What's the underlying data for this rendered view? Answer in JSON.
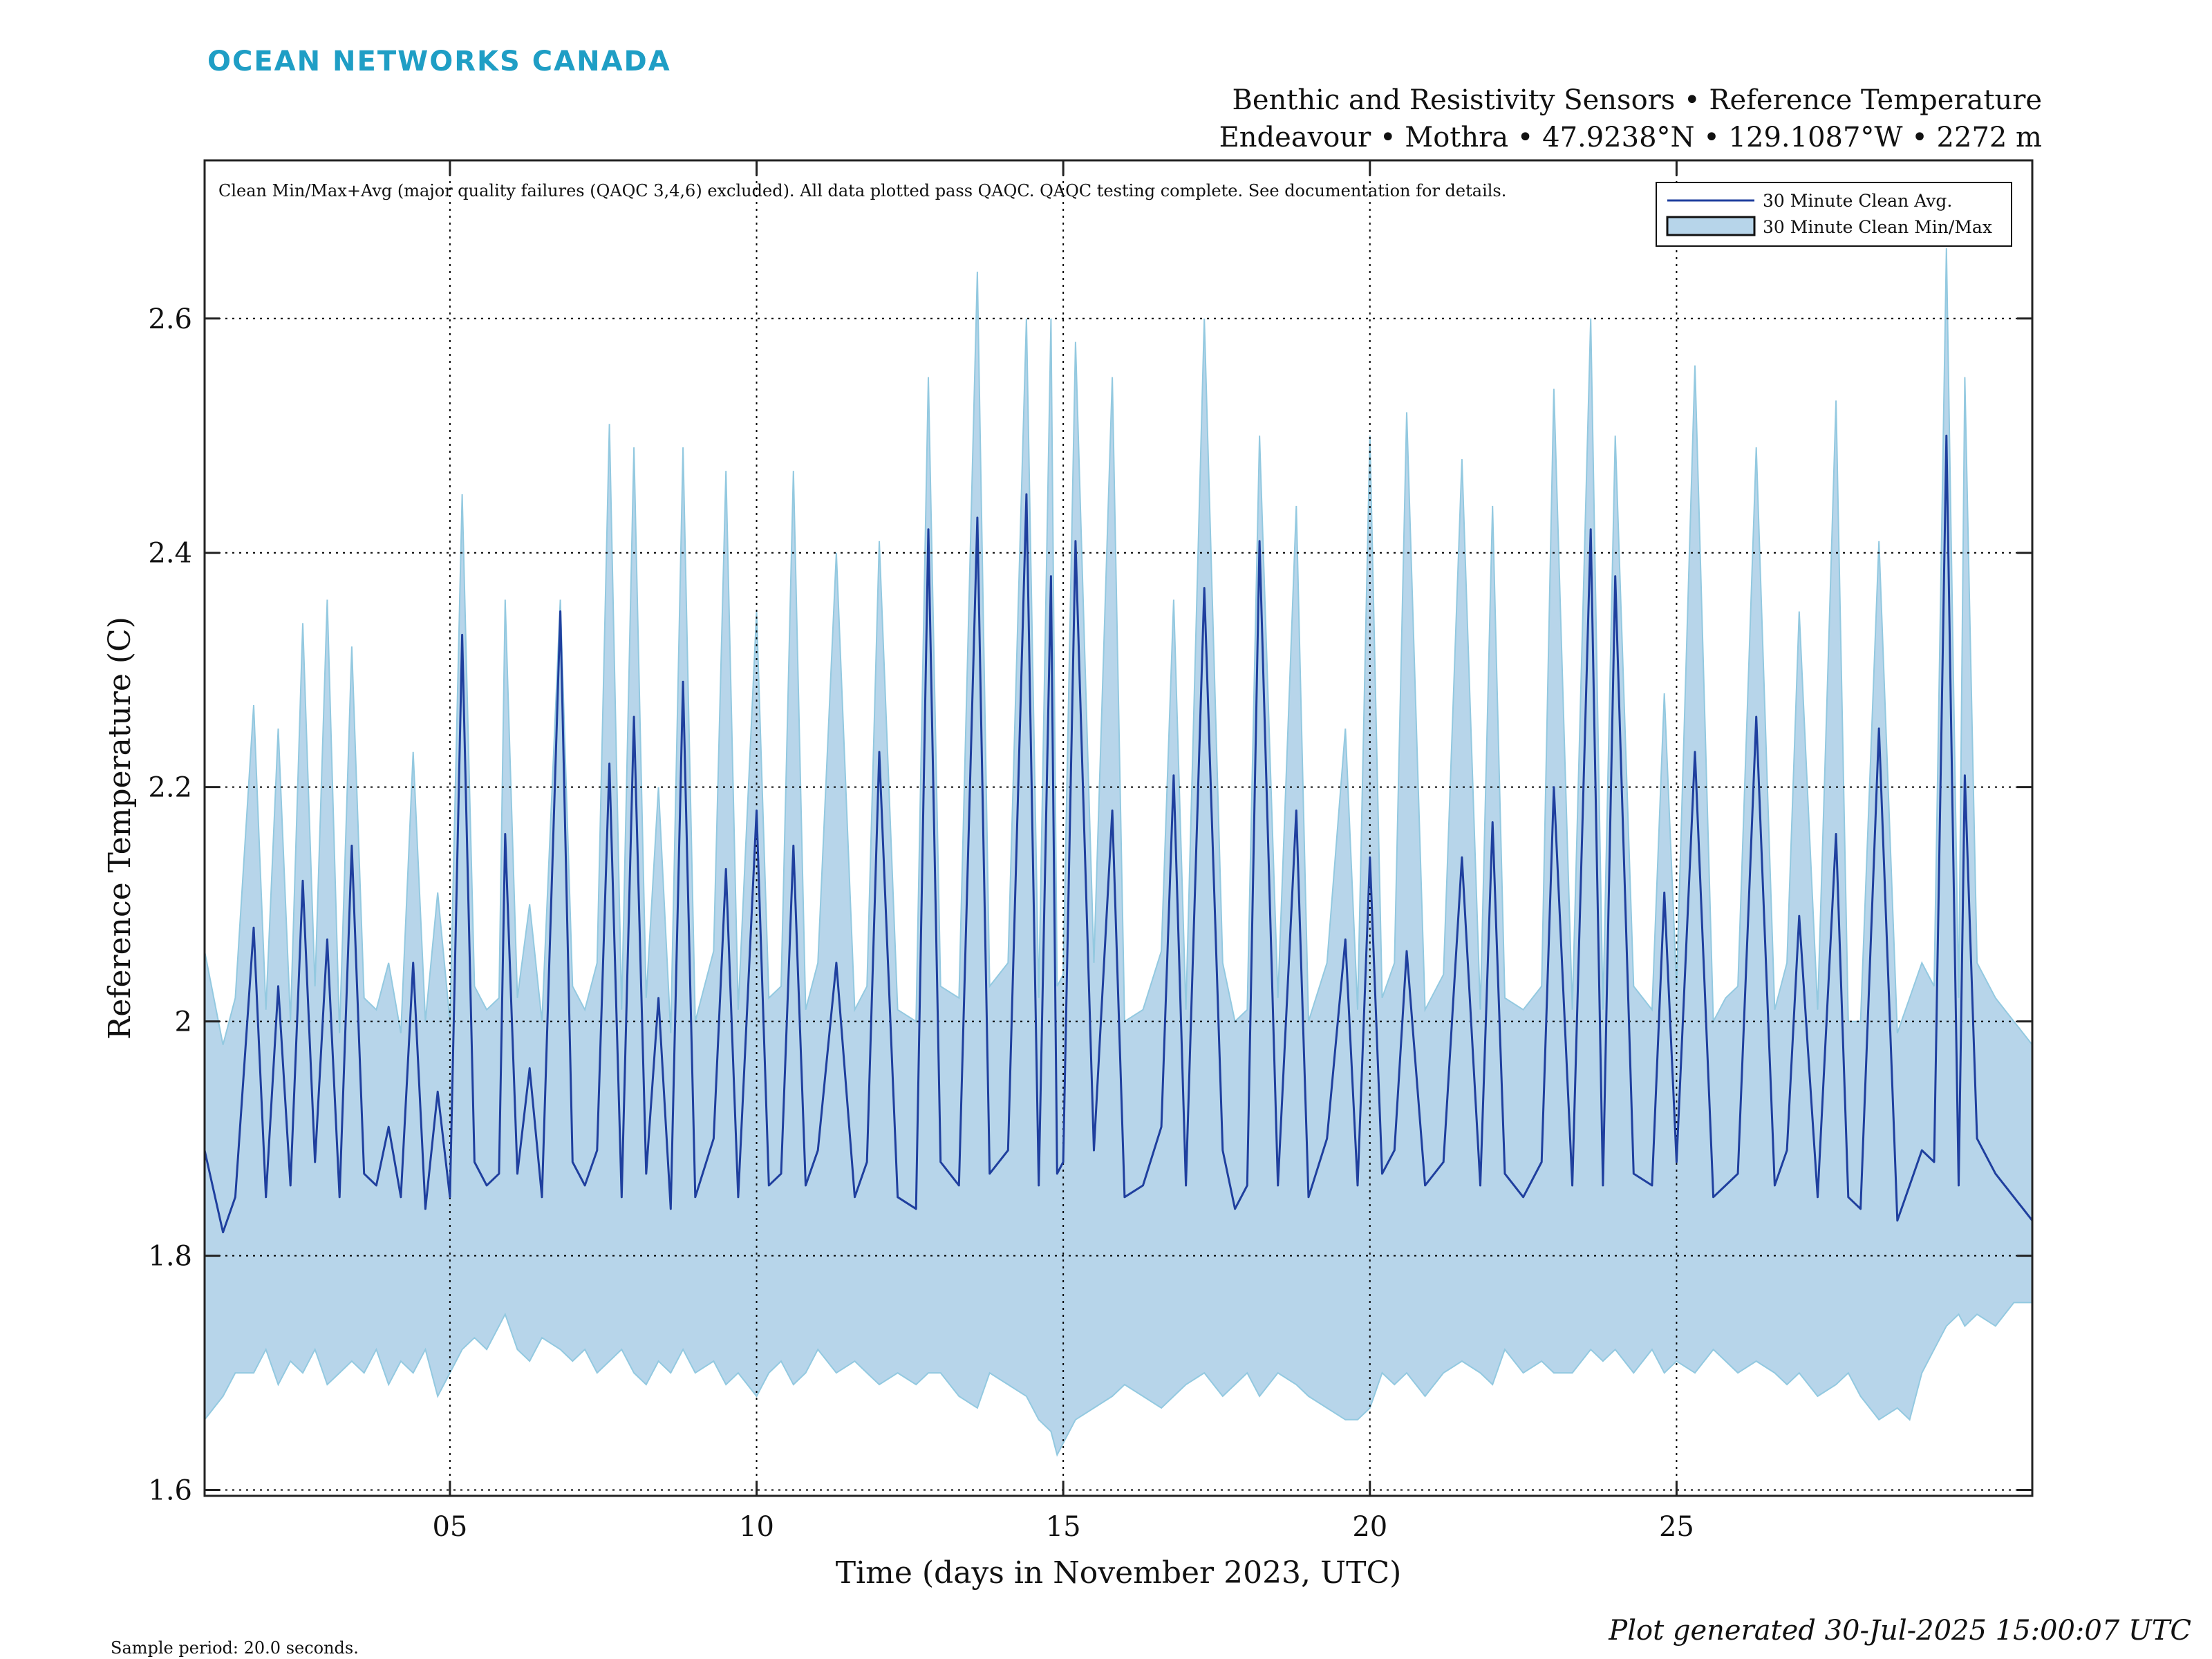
{
  "header": {
    "brand": "OCEAN NETWORKS CANADA",
    "title_line1": "Benthic and Resistivity Sensors • Reference Temperature",
    "title_line2": "Endeavour • Mothra • 47.9238°N • 129.1087°W • 2272 m"
  },
  "footer": {
    "sample_period": "Sample period: 20.0 seconds.",
    "generated": "Plot generated 30-Jul-2025 15:00:07 UTC"
  },
  "colors": {
    "avg_line": "#1f3f9e",
    "minmax_fill": "#b7d5ea",
    "minmax_spike": "#93c9e0",
    "grid": "#000000"
  },
  "chart_data": {
    "type": "area",
    "xlabel": "Time (days in November 2023, UTC)",
    "ylabel": "Reference Temperature (C)",
    "xlim": [
      1.0,
      30.8
    ],
    "ylim": [
      1.595,
      2.735
    ],
    "x_ticks": [
      5,
      10,
      15,
      20,
      25
    ],
    "x_tick_labels": [
      "05",
      "10",
      "15",
      "20",
      "25"
    ],
    "y_ticks": [
      1.6,
      1.8,
      2.0,
      2.2,
      2.4,
      2.6
    ],
    "y_tick_labels": [
      "1.6",
      "1.8",
      "2",
      "2.2",
      "2.4",
      "2.6"
    ],
    "grid": true,
    "legend_position": "top-right",
    "annotation": "Clean Min/Max+Avg (major quality failures (QAQC 3,4,6) excluded).  All data plotted pass QAQC. QAQC testing complete. See documentation for details.",
    "series": [
      {
        "name": "30 Minute Clean Avg.",
        "kind": "line",
        "x": [
          1.0,
          1.3,
          1.5,
          1.8,
          2.0,
          2.2,
          2.4,
          2.6,
          2.8,
          3.0,
          3.2,
          3.4,
          3.6,
          3.8,
          4.0,
          4.2,
          4.4,
          4.6,
          4.8,
          5.0,
          5.2,
          5.4,
          5.6,
          5.8,
          5.9,
          6.1,
          6.3,
          6.5,
          6.8,
          7.0,
          7.2,
          7.4,
          7.6,
          7.8,
          8.0,
          8.2,
          8.4,
          8.6,
          8.8,
          9.0,
          9.3,
          9.5,
          9.7,
          10.0,
          10.2,
          10.4,
          10.6,
          10.8,
          11.0,
          11.3,
          11.6,
          11.8,
          12.0,
          12.3,
          12.6,
          12.8,
          13.0,
          13.3,
          13.6,
          13.8,
          14.1,
          14.4,
          14.6,
          14.8,
          14.9,
          15.0,
          15.2,
          15.5,
          15.8,
          16.0,
          16.3,
          16.6,
          16.8,
          17.0,
          17.3,
          17.6,
          17.8,
          18.0,
          18.2,
          18.5,
          18.8,
          19.0,
          19.3,
          19.6,
          19.8,
          20.0,
          20.2,
          20.4,
          20.6,
          20.9,
          21.2,
          21.5,
          21.8,
          22.0,
          22.2,
          22.5,
          22.8,
          23.0,
          23.3,
          23.6,
          23.8,
          24.0,
          24.3,
          24.6,
          24.8,
          25.0,
          25.3,
          25.6,
          25.8,
          26.0,
          26.3,
          26.6,
          26.8,
          27.0,
          27.3,
          27.6,
          27.8,
          28.0,
          28.3,
          28.6,
          28.8,
          29.0,
          29.2,
          29.4,
          29.6,
          29.7,
          29.9,
          30.2,
          30.5,
          30.8
        ],
        "values": [
          1.89,
          1.82,
          1.85,
          2.08,
          1.85,
          2.03,
          1.86,
          2.12,
          1.88,
          2.07,
          1.85,
          2.15,
          1.87,
          1.86,
          1.91,
          1.85,
          2.05,
          1.84,
          1.94,
          1.85,
          2.33,
          1.88,
          1.86,
          1.87,
          2.16,
          1.87,
          1.96,
          1.85,
          2.35,
          1.88,
          1.86,
          1.89,
          2.22,
          1.85,
          2.26,
          1.87,
          2.02,
          1.84,
          2.29,
          1.85,
          1.9,
          2.13,
          1.85,
          2.18,
          1.86,
          1.87,
          2.15,
          1.86,
          1.89,
          2.05,
          1.85,
          1.88,
          2.23,
          1.85,
          1.84,
          2.42,
          1.88,
          1.86,
          2.43,
          1.87,
          1.89,
          2.45,
          1.86,
          2.38,
          1.87,
          1.88,
          2.41,
          1.89,
          2.18,
          1.85,
          1.86,
          1.91,
          2.21,
          1.86,
          2.37,
          1.89,
          1.84,
          1.86,
          2.41,
          1.86,
          2.18,
          1.85,
          1.9,
          2.07,
          1.86,
          2.14,
          1.87,
          1.89,
          2.06,
          1.86,
          1.88,
          2.14,
          1.86,
          2.17,
          1.87,
          1.85,
          1.88,
          2.2,
          1.86,
          2.42,
          1.86,
          2.38,
          1.87,
          1.86,
          2.11,
          1.88,
          2.23,
          1.85,
          1.86,
          1.87,
          2.26,
          1.86,
          1.89,
          2.09,
          1.85,
          2.16,
          1.85,
          1.84,
          2.25,
          1.83,
          1.86,
          1.89,
          1.88,
          2.5,
          1.86,
          2.21,
          1.9,
          1.87,
          1.85,
          1.83
        ]
      },
      {
        "name": "30 Minute Clean Min/Max",
        "kind": "band",
        "x": [
          1.0,
          1.3,
          1.5,
          1.8,
          2.0,
          2.2,
          2.4,
          2.6,
          2.8,
          3.0,
          3.2,
          3.4,
          3.6,
          3.8,
          4.0,
          4.2,
          4.4,
          4.6,
          4.8,
          5.0,
          5.2,
          5.4,
          5.6,
          5.8,
          5.9,
          6.1,
          6.3,
          6.5,
          6.8,
          7.0,
          7.2,
          7.4,
          7.6,
          7.8,
          8.0,
          8.2,
          8.4,
          8.6,
          8.8,
          9.0,
          9.3,
          9.5,
          9.7,
          10.0,
          10.2,
          10.4,
          10.6,
          10.8,
          11.0,
          11.3,
          11.6,
          11.8,
          12.0,
          12.3,
          12.6,
          12.8,
          13.0,
          13.3,
          13.6,
          13.8,
          14.1,
          14.4,
          14.6,
          14.8,
          14.9,
          15.0,
          15.2,
          15.5,
          15.8,
          16.0,
          16.3,
          16.6,
          16.8,
          17.0,
          17.3,
          17.6,
          17.8,
          18.0,
          18.2,
          18.5,
          18.8,
          19.0,
          19.3,
          19.6,
          19.8,
          20.0,
          20.2,
          20.4,
          20.6,
          20.9,
          21.2,
          21.5,
          21.8,
          22.0,
          22.2,
          22.5,
          22.8,
          23.0,
          23.3,
          23.6,
          23.8,
          24.0,
          24.3,
          24.6,
          24.8,
          25.0,
          25.3,
          25.6,
          25.8,
          26.0,
          26.3,
          26.6,
          26.8,
          27.0,
          27.3,
          27.6,
          27.8,
          28.0,
          28.3,
          28.6,
          28.8,
          29.0,
          29.2,
          29.4,
          29.6,
          29.7,
          29.9,
          30.2,
          30.5,
          30.8
        ],
        "min": [
          1.66,
          1.68,
          1.7,
          1.7,
          1.72,
          1.69,
          1.71,
          1.7,
          1.72,
          1.69,
          1.7,
          1.71,
          1.7,
          1.72,
          1.69,
          1.71,
          1.7,
          1.72,
          1.68,
          1.7,
          1.72,
          1.73,
          1.72,
          1.74,
          1.75,
          1.72,
          1.71,
          1.73,
          1.72,
          1.71,
          1.72,
          1.7,
          1.71,
          1.72,
          1.7,
          1.69,
          1.71,
          1.7,
          1.72,
          1.7,
          1.71,
          1.69,
          1.7,
          1.68,
          1.7,
          1.71,
          1.69,
          1.7,
          1.72,
          1.7,
          1.71,
          1.7,
          1.69,
          1.7,
          1.69,
          1.7,
          1.7,
          1.68,
          1.67,
          1.7,
          1.69,
          1.68,
          1.66,
          1.65,
          1.63,
          1.64,
          1.66,
          1.67,
          1.68,
          1.69,
          1.68,
          1.67,
          1.68,
          1.69,
          1.7,
          1.68,
          1.69,
          1.7,
          1.68,
          1.7,
          1.69,
          1.68,
          1.67,
          1.66,
          1.66,
          1.67,
          1.7,
          1.69,
          1.7,
          1.68,
          1.7,
          1.71,
          1.7,
          1.69,
          1.72,
          1.7,
          1.71,
          1.7,
          1.7,
          1.72,
          1.71,
          1.72,
          1.7,
          1.72,
          1.7,
          1.71,
          1.7,
          1.72,
          1.71,
          1.7,
          1.71,
          1.7,
          1.69,
          1.7,
          1.68,
          1.69,
          1.7,
          1.68,
          1.66,
          1.67,
          1.66,
          1.7,
          1.72,
          1.74,
          1.75,
          1.74,
          1.75,
          1.74,
          1.76,
          1.76
        ],
        "max": [
          2.06,
          1.98,
          2.02,
          2.27,
          2.01,
          2.25,
          2.0,
          2.34,
          2.03,
          2.36,
          1.99,
          2.32,
          2.02,
          2.01,
          2.05,
          1.99,
          2.23,
          2.0,
          2.11,
          2.0,
          2.45,
          2.03,
          2.01,
          2.02,
          2.36,
          2.02,
          2.1,
          2.0,
          2.36,
          2.03,
          2.01,
          2.05,
          2.51,
          2.01,
          2.49,
          2.02,
          2.2,
          1.99,
          2.49,
          2.0,
          2.06,
          2.47,
          2.01,
          2.35,
          2.02,
          2.03,
          2.47,
          2.01,
          2.05,
          2.4,
          2.01,
          2.03,
          2.41,
          2.01,
          2.0,
          2.55,
          2.03,
          2.02,
          2.64,
          2.03,
          2.05,
          2.6,
          2.02,
          2.6,
          2.03,
          2.04,
          2.58,
          2.05,
          2.55,
          2.0,
          2.01,
          2.06,
          2.36,
          2.01,
          2.6,
          2.05,
          2.0,
          2.01,
          2.5,
          2.02,
          2.44,
          2.0,
          2.05,
          2.25,
          2.01,
          2.5,
          2.02,
          2.05,
          2.52,
          2.01,
          2.04,
          2.48,
          2.01,
          2.44,
          2.02,
          2.01,
          2.03,
          2.54,
          2.01,
          2.6,
          2.01,
          2.5,
          2.03,
          2.01,
          2.28,
          2.03,
          2.56,
          2.0,
          2.02,
          2.03,
          2.49,
          2.01,
          2.05,
          2.35,
          2.01,
          2.53,
          2.0,
          2.0,
          2.41,
          1.99,
          2.02,
          2.05,
          2.03,
          2.66,
          2.02,
          2.55,
          2.05,
          2.02,
          2.0,
          1.98
        ]
      }
    ]
  }
}
